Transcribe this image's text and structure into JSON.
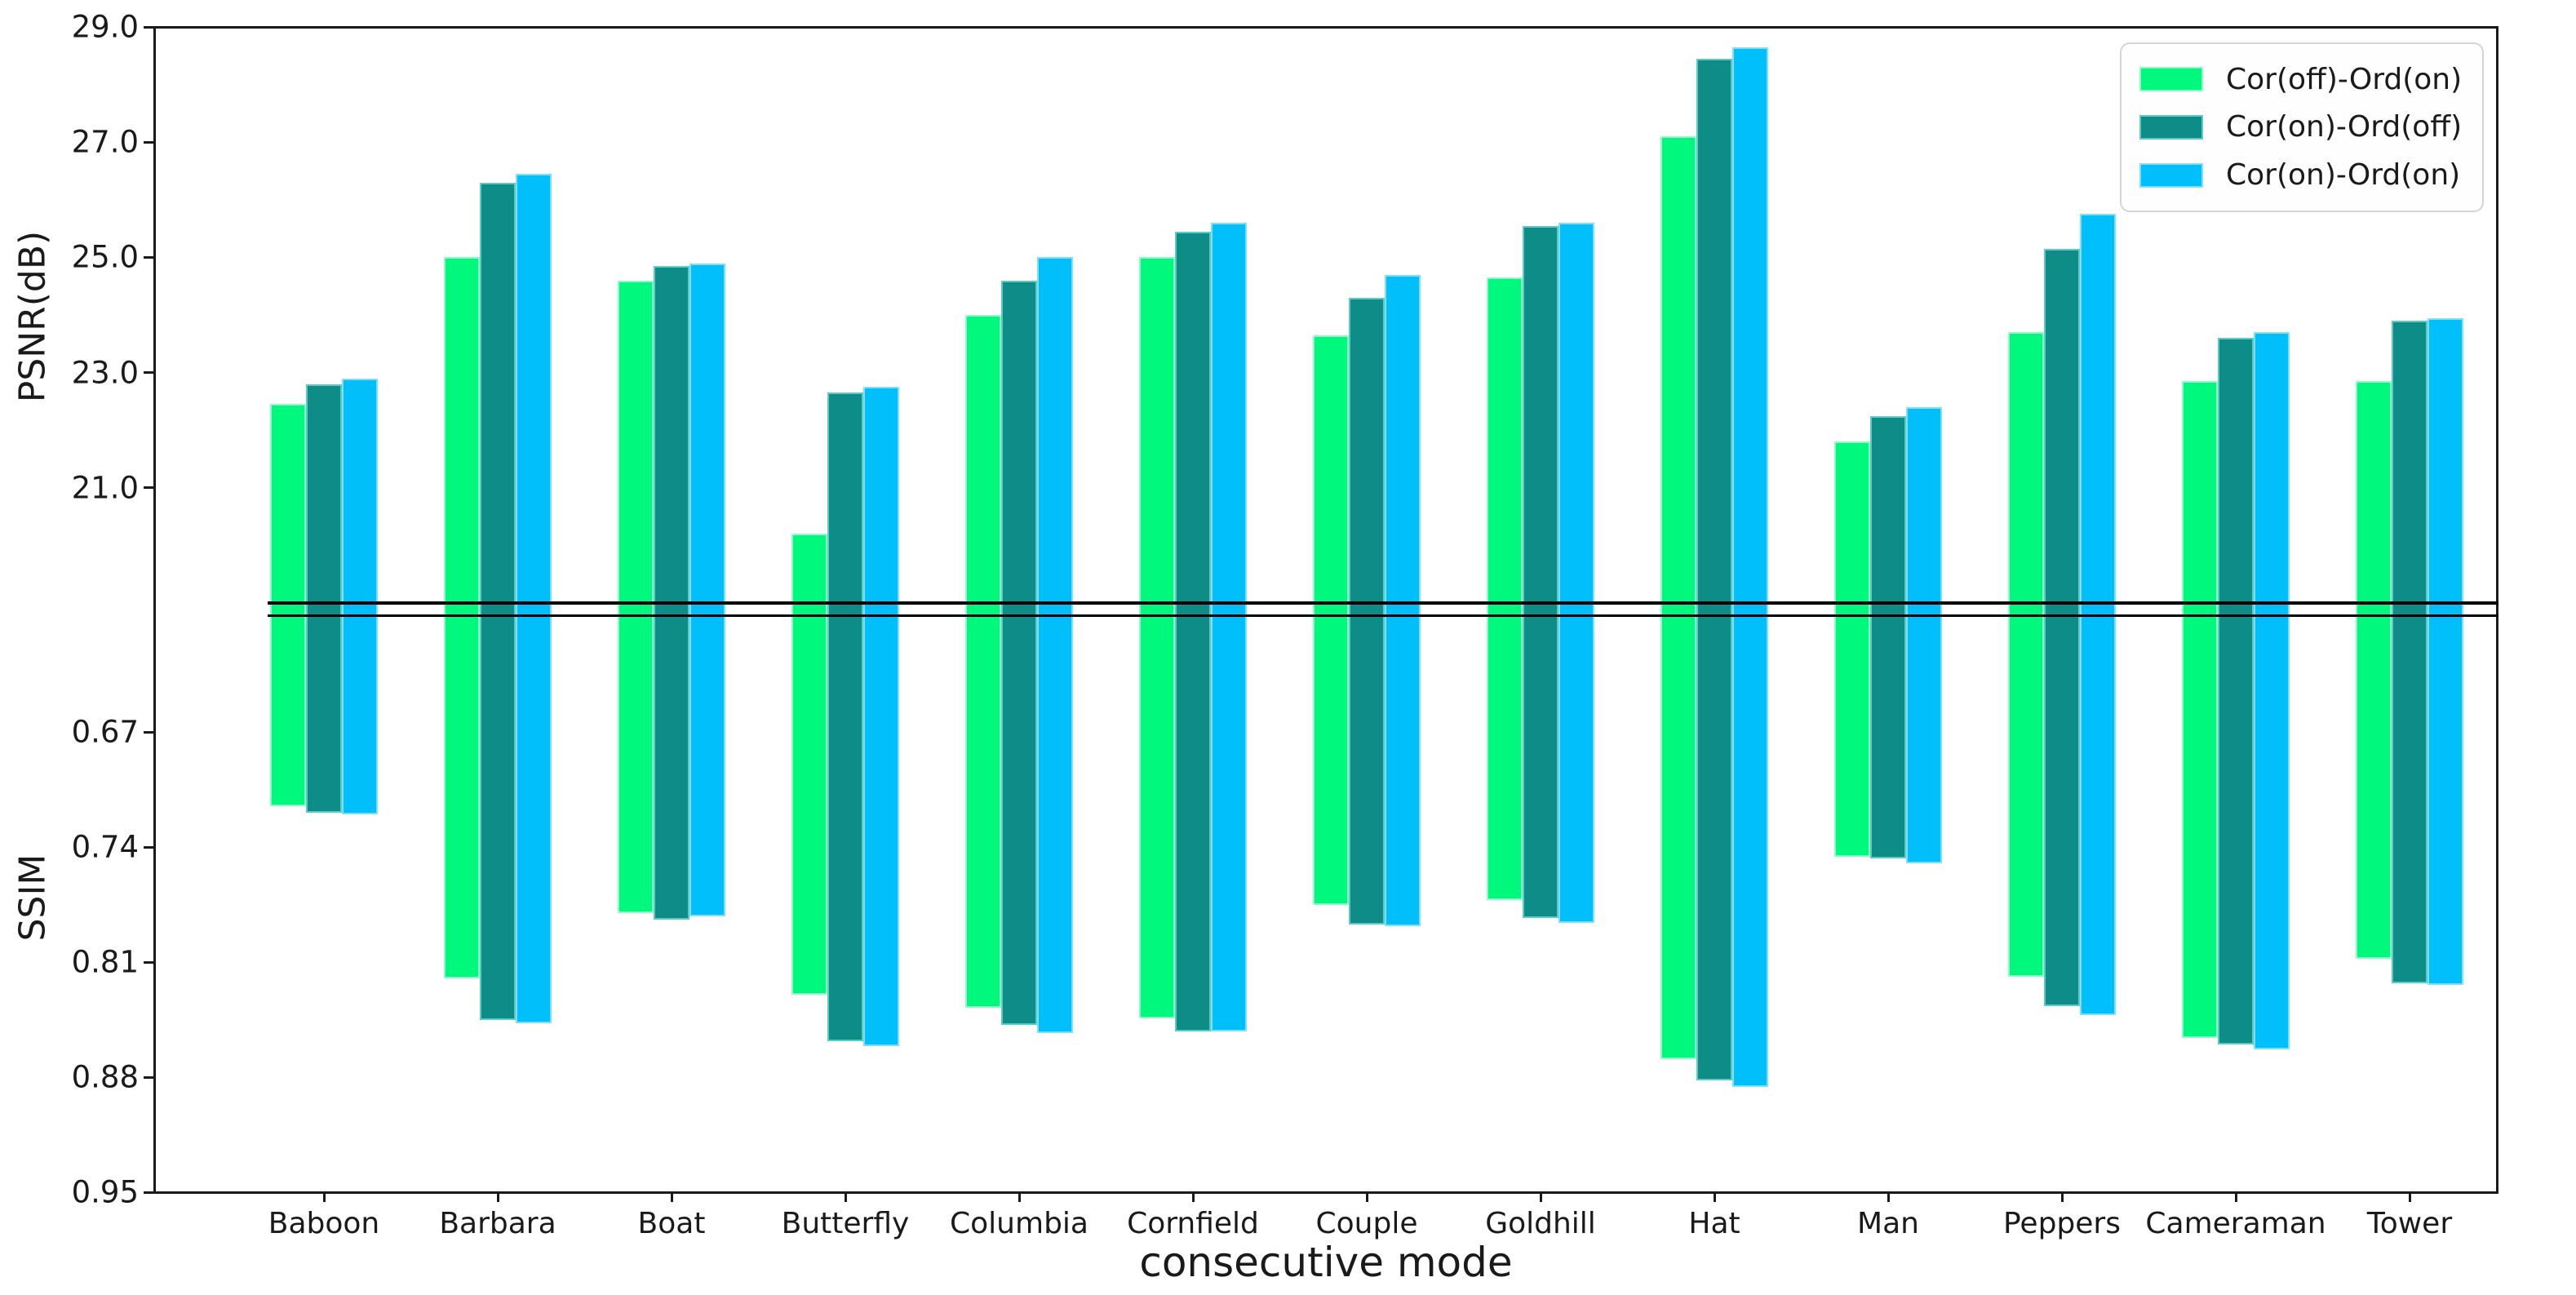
{
  "figure": {
    "xlabel": "consecutive mode",
    "ylabel_top": "PSNR(dB)",
    "ylabel_bottom": "SSIM",
    "background": "#ffffff",
    "spine_color": "#1a1a1a",
    "separator_color": "#000000"
  },
  "legend": {
    "position": "upper right",
    "entries": [
      {
        "label": "Cor(off)-Ord(on)",
        "color": "#00F97D",
        "edge": "#8cffcb"
      },
      {
        "label": "Cor(on)-Ord(off)",
        "color": "#0E8C87",
        "edge": "#5ecac5"
      },
      {
        "label": "Cor(on)-Ord(on)",
        "color": "#00BFFA",
        "edge": "#7fdfff"
      }
    ]
  },
  "chart_data": {
    "type": "bar",
    "title": "",
    "xlabel": "consecutive mode",
    "grid": false,
    "legend_position": "upper right",
    "categories": [
      "Baboon",
      "Barbara",
      "Boat",
      "Butterfly",
      "Columbia",
      "Cornfield",
      "Couple",
      "Goldhill",
      "Hat",
      "Man",
      "Peppers",
      "Cameraman",
      "Tower"
    ],
    "panels": [
      {
        "name": "psnr",
        "ylabel": "PSNR(dB)",
        "ylim": [
          19.0,
          29.0
        ],
        "inverted": false,
        "ticks": [
          29.0,
          27.0,
          25.0,
          23.0,
          21.0
        ],
        "tick_labels": [
          "29.0",
          "27.0",
          "25.0",
          "23.0",
          "21.0"
        ],
        "series": [
          {
            "name": "Cor(off)-Ord(on)",
            "values": [
              22.45,
              25.0,
              24.6,
              20.2,
              24.0,
              25.0,
              23.65,
              24.65,
              27.1,
              21.8,
              23.7,
              22.85,
              22.85
            ]
          },
          {
            "name": "Cor(on)-Ord(off)",
            "values": [
              22.8,
              26.3,
              24.85,
              22.65,
              24.6,
              25.45,
              24.3,
              25.55,
              28.45,
              22.25,
              25.15,
              23.6,
              23.9
            ]
          },
          {
            "name": "Cor(on)-Ord(on)",
            "values": [
              22.9,
              26.45,
              24.9,
              22.75,
              25.0,
              25.6,
              24.7,
              25.6,
              28.65,
              22.4,
              25.75,
              23.7,
              23.95
            ]
          }
        ]
      },
      {
        "name": "ssim",
        "ylabel": "SSIM",
        "ylim": [
          0.6,
          0.95
        ],
        "inverted": true,
        "ticks": [
          0.67,
          0.74,
          0.81,
          0.88,
          0.95
        ],
        "tick_labels": [
          "0.67",
          "0.74",
          "0.81",
          "0.88",
          "0.95"
        ],
        "series": [
          {
            "name": "Cor(off)-Ord(on)",
            "values": [
              0.715,
              0.82,
              0.78,
              0.83,
              0.838,
              0.844,
              0.775,
              0.772,
              0.869,
              0.746,
              0.819,
              0.856,
              0.808
            ]
          },
          {
            "name": "Cor(on)-Ord(off)",
            "values": [
              0.719,
              0.845,
              0.784,
              0.858,
              0.848,
              0.852,
              0.787,
              0.783,
              0.882,
              0.747,
              0.837,
              0.86,
              0.823
            ]
          },
          {
            "name": "Cor(on)-Ord(on)",
            "values": [
              0.72,
              0.847,
              0.782,
              0.861,
              0.853,
              0.852,
              0.788,
              0.786,
              0.886,
              0.75,
              0.842,
              0.863,
              0.824
            ]
          }
        ]
      }
    ]
  }
}
